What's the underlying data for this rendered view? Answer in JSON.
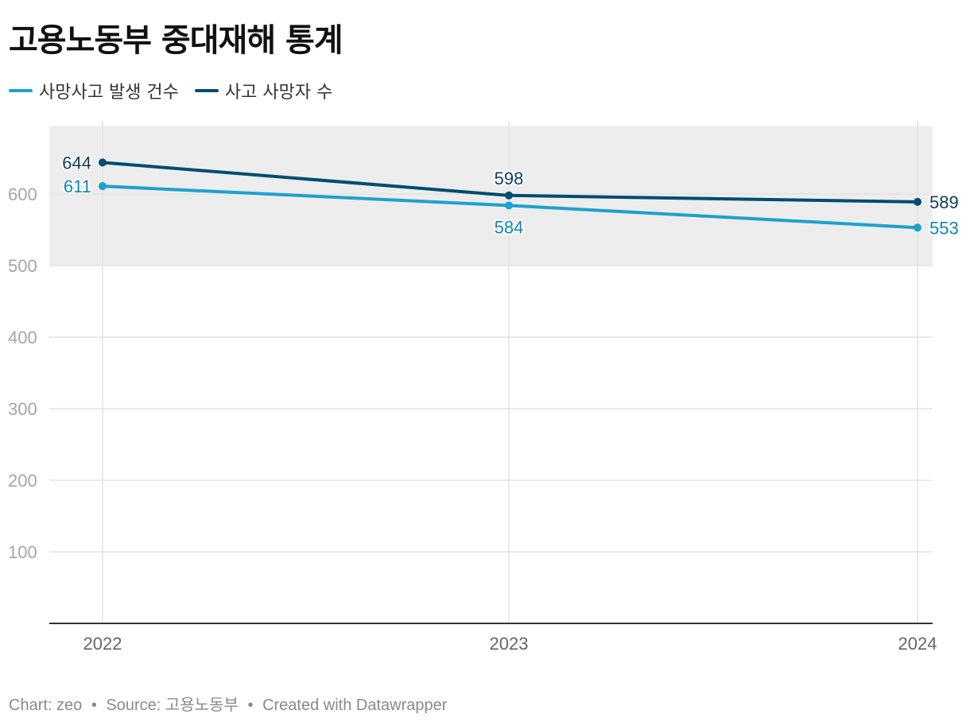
{
  "title": "고용노동부 중대재해 통계",
  "footer": {
    "chart_label": "Chart:",
    "chart_author": "zeo",
    "source_label": "Source:",
    "source": "고용노동부",
    "created": "Created with Datawrapper",
    "separator": "•"
  },
  "colors": {
    "series_incidents": "#1da1cf",
    "series_deaths": "#004c70",
    "band": "#ededed",
    "grid": "#e3e3e3",
    "axis": "#333333",
    "tick_text": "#a6a6a6",
    "x_text": "#666666",
    "label_incidents": "#0f86b0",
    "label_deaths": "#0b3d5c"
  },
  "chart_data": {
    "type": "line",
    "categories": [
      "2022",
      "2023",
      "2024"
    ],
    "series": [
      {
        "name": "사망사고 발생 건수",
        "values": [
          611,
          584,
          553
        ]
      },
      {
        "name": "사고 사망자 수",
        "values": [
          644,
          598,
          589
        ]
      }
    ],
    "ylim": [
      0,
      700
    ],
    "yticks": [
      100,
      200,
      300,
      400,
      500,
      600
    ],
    "highlight_band": [
      500,
      695
    ],
    "grid": true,
    "legend_position": "top-left"
  }
}
